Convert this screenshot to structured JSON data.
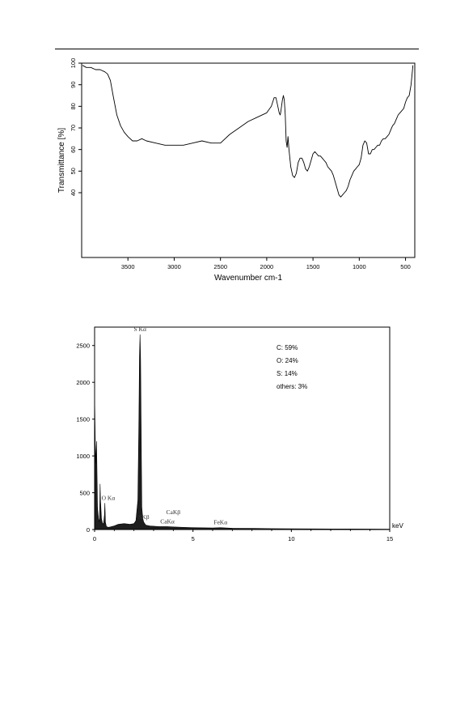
{
  "chart_data": [
    {
      "type": "line",
      "xlabel": "Wavenumber cm-1",
      "ylabel": "Transmittance [%]",
      "xlim": [
        4000,
        400
      ],
      "ylim": [
        10,
        100
      ],
      "x_reversed": true,
      "x_ticks": [
        3500,
        3000,
        2500,
        2000,
        1500,
        1000,
        500
      ],
      "y_ticks": [
        40,
        50,
        60,
        70,
        80,
        90,
        100
      ],
      "grid": false,
      "series": [
        {
          "x": [
            3990,
            3950,
            3900,
            3850,
            3800,
            3750,
            3720,
            3690,
            3660,
            3620,
            3580,
            3540,
            3500,
            3450,
            3400,
            3350,
            3300,
            3200,
            3100,
            3000,
            2900,
            2800,
            2700,
            2600,
            2500,
            2400,
            2300,
            2200,
            2100,
            2000,
            1950,
            1920,
            1900,
            1880,
            1865,
            1855,
            1850,
            1840,
            1830,
            1820,
            1810,
            1800,
            1790,
            1780,
            1770,
            1760,
            1740,
            1720,
            1700,
            1680,
            1660,
            1640,
            1620,
            1600,
            1580,
            1560,
            1540,
            1520,
            1500,
            1480,
            1460,
            1440,
            1420,
            1400,
            1380,
            1360,
            1340,
            1320,
            1300,
            1280,
            1260,
            1240,
            1220,
            1200,
            1180,
            1160,
            1140,
            1120,
            1100,
            1080,
            1060,
            1040,
            1020,
            1000,
            980,
            960,
            940,
            920,
            900,
            880,
            860,
            840,
            820,
            800,
            780,
            760,
            740,
            720,
            700,
            680,
            660,
            640,
            620,
            600,
            580,
            560,
            540,
            520,
            500,
            480,
            460,
            440,
            420
          ],
          "y": [
            99,
            98,
            98,
            97,
            97,
            96,
            95,
            92,
            85,
            76,
            71,
            68,
            66,
            64,
            64,
            65,
            64,
            63,
            62,
            62,
            62,
            63,
            64,
            63,
            63,
            67,
            70,
            73,
            75,
            77,
            80,
            84,
            84,
            80,
            77,
            76,
            77,
            80,
            83,
            85,
            83,
            76,
            64,
            61,
            66,
            60,
            52,
            48,
            47,
            49,
            54,
            56,
            56,
            54,
            51,
            50,
            52,
            55,
            58,
            59,
            58,
            57,
            57,
            56,
            55,
            54,
            52,
            51,
            50,
            48,
            45,
            42,
            39,
            38,
            39,
            40,
            41,
            43,
            46,
            48,
            50,
            51,
            52,
            53,
            56,
            62,
            64,
            63,
            58,
            58,
            60,
            60,
            61,
            62,
            62,
            64,
            65,
            65,
            66,
            67,
            69,
            71,
            72,
            74,
            76,
            77,
            78,
            79,
            82,
            84,
            85,
            90,
            99
          ]
        }
      ]
    },
    {
      "type": "area",
      "xlabel": "keV",
      "xlim": [
        0,
        15
      ],
      "ylim": [
        0,
        2750
      ],
      "x_ticks": [
        0,
        5,
        10,
        15
      ],
      "y_ticks": [
        0,
        500,
        1000,
        1500,
        2000,
        2500
      ],
      "grid": false,
      "peak_labels": [
        {
          "text": "S Kα",
          "x": 2.31,
          "y": 2650
        },
        {
          "text": "O Kα",
          "x": 0.52,
          "y": 360
        },
        {
          "text": "SKβ",
          "x": 2.5,
          "y": 100
        },
        {
          "text": "CaKβ",
          "x": 4.0,
          "y": 165
        },
        {
          "text": "CaKα",
          "x": 3.7,
          "y": 40
        },
        {
          "text": "FeKα",
          "x": 6.4,
          "y": 30
        }
      ],
      "composition": [
        "C: 59%",
        "O: 24%",
        "S: 14%",
        "others: 3%"
      ],
      "series": [
        {
          "x": [
            0.0,
            0.05,
            0.1,
            0.15,
            0.2,
            0.25,
            0.28,
            0.3,
            0.35,
            0.4,
            0.45,
            0.5,
            0.52,
            0.55,
            0.6,
            0.7,
            0.8,
            1.0,
            1.2,
            1.5,
            1.8,
            2.0,
            2.1,
            2.2,
            2.25,
            2.28,
            2.31,
            2.34,
            2.37,
            2.4,
            2.45,
            2.5,
            2.6,
            2.8,
            3.0,
            3.3,
            3.7,
            4.0,
            4.5,
            5.0,
            6.0,
            6.4,
            7.0,
            8.0,
            9.0,
            10.0,
            11.0,
            12.0,
            13.0,
            14.0,
            15.0
          ],
          "y": [
            1850,
            900,
            1200,
            300,
            150,
            100,
            620,
            400,
            150,
            90,
            70,
            200,
            360,
            100,
            40,
            30,
            35,
            50,
            70,
            80,
            70,
            80,
            120,
            400,
            1500,
            2350,
            2650,
            2300,
            1200,
            300,
            150,
            100,
            60,
            50,
            45,
            40,
            40,
            35,
            30,
            25,
            22,
            25,
            18,
            15,
            12,
            10,
            9,
            8,
            8,
            7,
            5
          ]
        }
      ]
    }
  ]
}
